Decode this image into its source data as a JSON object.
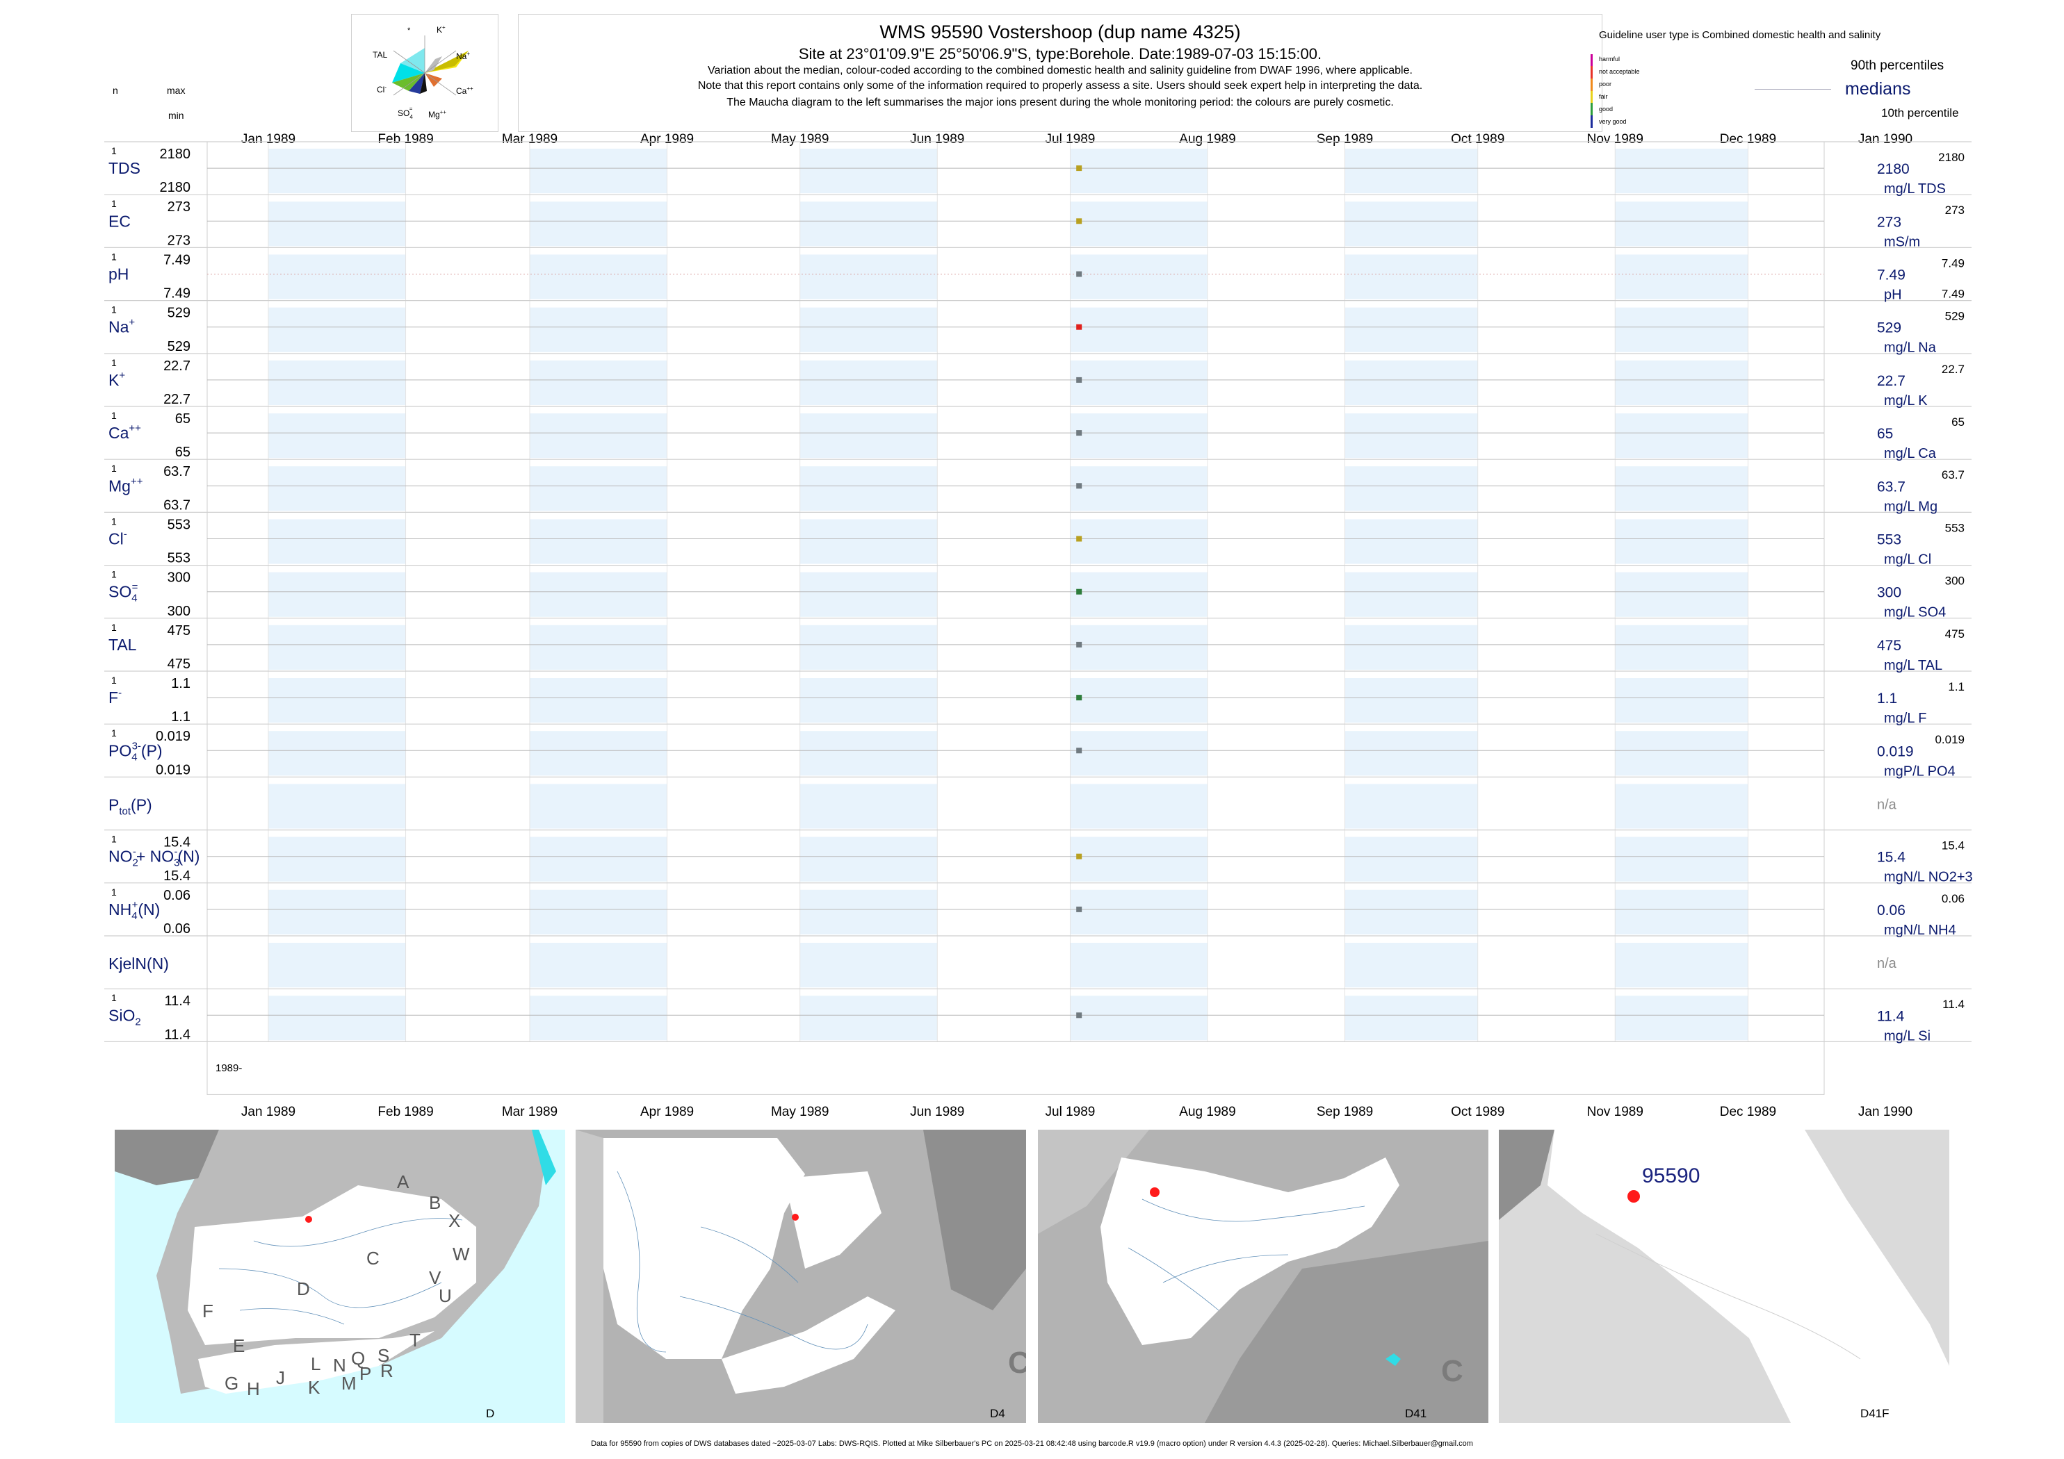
{
  "header": {
    "title": "WMS 95590  Vostershoop (dup name 4325)",
    "site": "Site at 23°01'09.9\"E 25°50'06.9\"S, type:Borehole. Date:1989-07-03 15:15:00.",
    "note1": "Variation about the median,  colour-coded according to the combined domestic health and salinity guideline from DWAF 1996, where applicable.",
    "note2": "Note that this report contains only some of the information required to properly assess a site. Users should seek expert help in interpreting the data.",
    "note3": "The Maucha diagram to the left summarises the major ions present during the whole monitoring period: the colours are purely cosmetic."
  },
  "left_labels": {
    "n": "n",
    "max": "max",
    "min": "min"
  },
  "maucha": {
    "star": "*",
    "k": "K",
    "k_sup": "+",
    "tal": "TAL",
    "na": "Na",
    "na_sup": "+",
    "cl": "Cl",
    "cl_sup": "-",
    "ca": "Ca",
    "ca_sup": "++",
    "so": "SO",
    "so_sub": "4",
    "so_sup": "=",
    "mg": "Mg",
    "mg_sup": "++"
  },
  "legend": {
    "title": "Guideline user type is Combined domestic health and salinity",
    "classes": [
      {
        "label": "harmful",
        "color": "#cc0099"
      },
      {
        "label": "not acceptable",
        "color": "#e8332a"
      },
      {
        "label": "poor",
        "color": "#f08a1c"
      },
      {
        "label": "fair",
        "color": "#e8d21c"
      },
      {
        "label": "good",
        "color": "#2e9e3c"
      },
      {
        "label": "very good",
        "color": "#1c2c9c"
      }
    ],
    "p90": "90th percentiles",
    "medians": "medians",
    "p10": "10th percentile"
  },
  "chart_data": {
    "type": "scatter",
    "x_axis": {
      "ticks": [
        "Jan 1989",
        "Feb 1989",
        "Mar 1989",
        "Apr 1989",
        "May 1989",
        "Jun 1989",
        "Jul 1989",
        "Aug 1989",
        "Sep 1989",
        "Oct 1989",
        "Nov 1989",
        "Dec 1989",
        "Jan 1990"
      ],
      "range": [
        "1989-01-01",
        "1990-01-01"
      ],
      "year_label": "1989-"
    },
    "panels": [
      {
        "label": "TDS",
        "n": "1",
        "max": "2180",
        "min": "2180",
        "x": "1989-07-03",
        "value": 2180,
        "median": "2180",
        "p90": "2180",
        "p10": "",
        "unit": "mg/L TDS",
        "color": "#b8a020"
      },
      {
        "label": "EC",
        "n": "1",
        "max": "273",
        "min": "273",
        "x": "1989-07-03",
        "value": 273,
        "median": "273",
        "p90": "273",
        "p10": "",
        "unit": "mS/m",
        "color": "#b8a020"
      },
      {
        "label": "pH",
        "n": "1",
        "max": "7.49",
        "min": "7.49",
        "x": "1989-07-03",
        "value": 7.49,
        "median": "7.49",
        "p90": "7.49",
        "p10": "7.49",
        "unit": "pH",
        "color": "#707a80",
        "dotted": true
      },
      {
        "label": "Na",
        "sup": "+",
        "n": "1",
        "max": "529",
        "min": "529",
        "x": "1989-07-03",
        "value": 529,
        "median": "529",
        "p90": "529",
        "p10": "",
        "unit": "mg/L Na",
        "color": "#e0201c"
      },
      {
        "label": "K",
        "sup": "+",
        "n": "1",
        "max": "22.7",
        "min": "22.7",
        "x": "1989-07-03",
        "value": 22.7,
        "median": "22.7",
        "p90": "22.7",
        "p10": "",
        "unit": "mg/L K",
        "color": "#707a80"
      },
      {
        "label": "Ca",
        "sup": "++",
        "n": "1",
        "max": "65",
        "min": "65",
        "x": "1989-07-03",
        "value": 65,
        "median": "65",
        "p90": "65",
        "p10": "",
        "unit": "mg/L Ca",
        "color": "#707a80"
      },
      {
        "label": "Mg",
        "sup": "++",
        "n": "1",
        "max": "63.7",
        "min": "63.7",
        "x": "1989-07-03",
        "value": 63.7,
        "median": "63.7",
        "p90": "63.7",
        "p10": "",
        "unit": "mg/L Mg",
        "color": "#707a80"
      },
      {
        "label": "Cl",
        "sup": "-",
        "n": "1",
        "max": "553",
        "min": "553",
        "x": "1989-07-03",
        "value": 553,
        "median": "553",
        "p90": "553",
        "p10": "",
        "unit": "mg/L Cl",
        "color": "#b8a020"
      },
      {
        "label": "SO",
        "sub": "4",
        "sup": "=",
        "n": "1",
        "max": "300",
        "min": "300",
        "x": "1989-07-03",
        "value": 300,
        "median": "300",
        "p90": "300",
        "p10": "",
        "unit": "mg/L SO4",
        "color": "#2e7d3c"
      },
      {
        "label": "TAL",
        "n": "1",
        "max": "475",
        "min": "475",
        "x": "1989-07-03",
        "value": 475,
        "median": "475",
        "p90": "475",
        "p10": "",
        "unit": "mg/L TAL",
        "color": "#707a80"
      },
      {
        "label": "F",
        "sup": "-",
        "n": "1",
        "max": "1.1",
        "min": "1.1",
        "x": "1989-07-03",
        "value": 1.1,
        "median": "1.1",
        "p90": "1.1",
        "p10": "",
        "unit": "mg/L F",
        "color": "#2e7d3c"
      },
      {
        "label": "PO",
        "sub": "4",
        "sup": "3-",
        "suffix": "(P)",
        "n": "1",
        "max": "0.019",
        "min": "0.019",
        "x": "1989-07-03",
        "value": 0.019,
        "median": "0.019",
        "p90": "0.019",
        "p10": "",
        "unit": "mgP/L PO4",
        "color": "#707a80"
      },
      {
        "label": "P",
        "sub": "tot",
        "suffix": "(P)",
        "n": "",
        "max": "",
        "min": "",
        "x": null,
        "value": null,
        "median": "n/a",
        "p90": "",
        "p10": "",
        "unit": "",
        "color": ""
      },
      {
        "label": "NO",
        "sub": "2",
        "sup": "-",
        "mid": "+ NO",
        "sub2": "3",
        "sup2": "-",
        "suffix": "(N)",
        "n": "1",
        "max": "15.4",
        "min": "15.4",
        "x": "1989-07-03",
        "value": 15.4,
        "median": "15.4",
        "p90": "15.4",
        "p10": "",
        "unit": "mgN/L NO2+3",
        "color": "#b8a020"
      },
      {
        "label": "NH",
        "sub": "4",
        "sup": "+",
        "suffix": "(N)",
        "n": "1",
        "max": "0.06",
        "min": "0.06",
        "x": "1989-07-03",
        "value": 0.06,
        "median": "0.06",
        "p90": "0.06",
        "p10": "",
        "unit": "mgN/L NH4",
        "color": "#707a80"
      },
      {
        "label": "KjelN(N)",
        "n": "",
        "max": "",
        "min": "",
        "x": null,
        "value": null,
        "median": "n/a",
        "p90": "",
        "p10": "",
        "unit": "",
        "color": ""
      },
      {
        "label": "SiO",
        "sub": "2",
        "n": "1",
        "max": "11.4",
        "min": "11.4",
        "x": "1989-07-03",
        "value": 11.4,
        "median": "11.4",
        "p90": "11.4",
        "p10": "",
        "unit": "mg/L Si",
        "color": "#707a80"
      }
    ]
  },
  "maps": [
    {
      "caption": "D",
      "letters": [
        "A",
        "B",
        "X",
        "C",
        "W",
        "V",
        "U",
        "D",
        "T",
        "F",
        "E",
        "S",
        "R",
        "Q",
        "P",
        "N",
        "L",
        "M",
        "K",
        "J",
        "H",
        "G"
      ]
    },
    {
      "caption": "D4",
      "letters": [
        "C"
      ]
    },
    {
      "caption": "D41",
      "letters": [
        "C"
      ]
    },
    {
      "caption": "D41F",
      "site_label": "95590"
    }
  ],
  "footer": "Data for 95590 from copies of DWS databases dated ~2025-03-07 Labs: DWS-RQIS. Plotted at Mike Silberbauer's PC on 2025-03-21 08:42:48 using barcode.R v19.9 (macro option) under R version 4.4.3 (2025-02-28). Queries: Michael.Silberbauer@gmail.com"
}
